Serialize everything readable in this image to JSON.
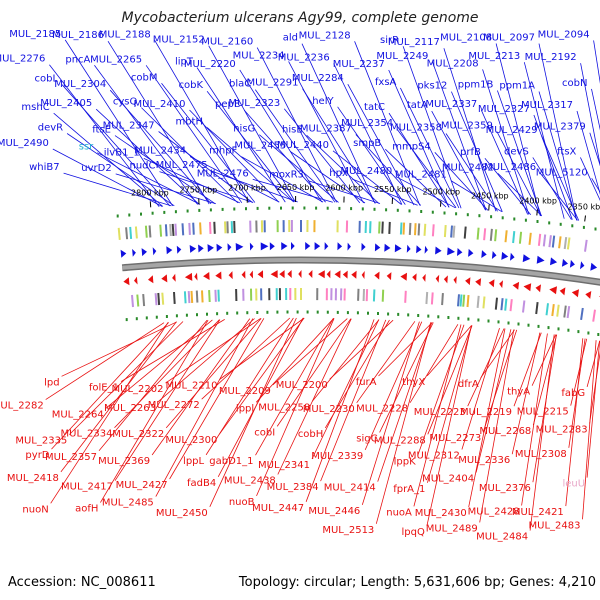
{
  "title": "Mycobacterium ulcerans Agy99, complete genome",
  "footer": {
    "accession": "Accession: NC_008611",
    "summary": "Topology: circular; Length: 5,631,606 bp; Genes: 4,210"
  },
  "colors": {
    "forward": "#1010e0",
    "reverse": "#e81010",
    "backbone": "#a6a6a6",
    "tick_marker": "#2a8a2a",
    "rna_label": "#e8a8c8",
    "cyan_label": "#20b0d0"
  },
  "scale_ticks": [
    "2350 kbp",
    "2400 kbp",
    "2450 kbp",
    "2500 kbp",
    "2550 kbp",
    "2600 kbp",
    "2650 kbp",
    "2700 kbp",
    "2750 kbp",
    "2800 kbp"
  ],
  "forward_labels": [
    "MUL_2094",
    "MUL_2097",
    "MUL_2108",
    "MUL_2117",
    "sirR",
    "MUL_2128",
    "ald",
    "MUL_2160",
    "MUL_2152",
    "MUL_2188",
    "MUL_2186",
    "MUL_2185",
    "MUL_2192",
    "MUL_2213",
    "MUL_2208",
    "MUL_2249",
    "MUL_2237",
    "MUL_2236",
    "MUL_2234",
    "MUL_2220",
    "lipT",
    "MUL_2265",
    "pncA",
    "MUL_2276",
    "cobN",
    "ppm1A",
    "ppm1B",
    "pks12",
    "fxsA",
    "MUL_2284",
    "MUL_2291",
    "blaC",
    "cobK",
    "cobM",
    "MUL_2304",
    "cobL",
    "MUL_2317",
    "MUL_2327",
    "MUL_2337",
    "tatA",
    "tatC",
    "helY",
    "MUL_2323",
    "pepE",
    "MUL_2410",
    "cysQ",
    "MUL_2405",
    "mshC",
    "MUL_2379",
    "MUL_2429",
    "MUL_2359",
    "MUL_2358",
    "MUL_2354",
    "MUL_2387",
    "hisE",
    "hisG",
    "mbtH",
    "MUL_2347",
    "ftsE",
    "devR",
    "ftsX",
    "devS",
    "prfB",
    "mmpS4",
    "smpB",
    "MUL_2440",
    "MUL_2455",
    "mhpF",
    "MUL_2434",
    "ilvB1_1",
    "ssr",
    "MUL_2490",
    "MUL_5120",
    "MUL_2486",
    "MUL_2482",
    "MUL_2481",
    "MUL_2480",
    "hpx",
    "moxR3",
    "MUL_2476",
    "MUL_2475",
    "nudC",
    "uvrD2",
    "whiB7"
  ],
  "reverse_labels": [
    "fabG",
    "thyA",
    "dfrA",
    "thyX",
    "furA",
    "MUL_2200",
    "MUL_2209",
    "MUL_2210",
    "MUL_2202",
    "folE_1",
    "lpd",
    "MUL_2215",
    "MUL_2219",
    "MUL_2223",
    "MUL_2228",
    "MUL_2230",
    "MUL_2258",
    "lppl",
    "MUL_2272",
    "MUL_2263",
    "MUL_2264",
    "MUL_2282",
    "MUL_2283",
    "MUL_2268",
    "MUL_2273",
    "MUL_2288",
    "sigC",
    "cobH",
    "cobI",
    "MUL_2300",
    "MUL_2322",
    "MUL_2334",
    "MUL_2335",
    "MUL_2308",
    "MUL_2336",
    "MUL_2312",
    "lppK",
    "MUL_2339",
    "MUL_2341",
    "gabD1_1",
    "lppL",
    "MUL_2369",
    "MUL_2357",
    "pyrD",
    "leuU",
    "MUL_2376",
    "MUL_2404",
    "fprA_1",
    "MUL_2414",
    "MUL_2384",
    "MUL_2438",
    "fadB4",
    "MUL_2427",
    "MUL_2417",
    "MUL_2418",
    "MUL_2421",
    "MUL_2428",
    "MUL_2430",
    "nuoA",
    "MUL_2446",
    "MUL_2447",
    "nuoB",
    "MUL_2450",
    "MUL_2485",
    "aofH",
    "nuoN",
    "MUL_2483",
    "MUL_2484",
    "MUL_2489",
    "lpqQ",
    "MUL_2513"
  ]
}
